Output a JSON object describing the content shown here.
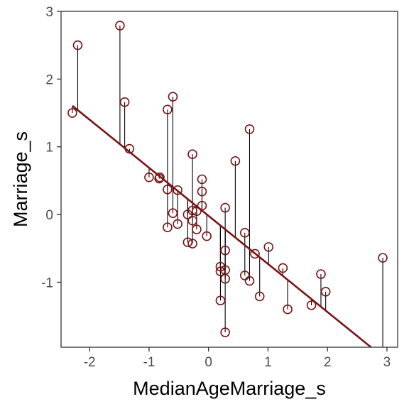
{
  "chart_data": {
    "type": "scatter",
    "xlabel": "MedianAgeMarriage_s",
    "ylabel": "Marriage_s",
    "xlim": [
      -2.48,
      3.18
    ],
    "ylim": [
      -1.96,
      3.0
    ],
    "xticks": [
      -2,
      -1,
      0,
      1,
      2,
      3
    ],
    "yticks": [
      -1,
      0,
      1,
      2,
      3
    ],
    "xtick_labels": [
      "-2",
      "-1",
      "0",
      "1",
      "2",
      "3"
    ],
    "ytick_labels": [
      "-1",
      "0",
      "1",
      "2",
      "3"
    ],
    "grid": false,
    "regression_line": {
      "intercept": -0.02,
      "slope": -0.71
    },
    "residual_segments": true,
    "point_color": "#7a1416",
    "line_color": "#7a1416",
    "points": [
      {
        "x": -2.29,
        "y": 1.5
      },
      {
        "x": -2.2,
        "y": 2.5
      },
      {
        "x": -1.49,
        "y": 2.79
      },
      {
        "x": -1.41,
        "y": 1.66
      },
      {
        "x": -1.33,
        "y": 0.97
      },
      {
        "x": -1.0,
        "y": 0.55
      },
      {
        "x": -0.83,
        "y": 0.53
      },
      {
        "x": -0.82,
        "y": 0.55
      },
      {
        "x": -0.69,
        "y": 1.55
      },
      {
        "x": -0.69,
        "y": 0.37
      },
      {
        "x": -0.69,
        "y": -0.19
      },
      {
        "x": -0.6,
        "y": 1.74
      },
      {
        "x": -0.6,
        "y": 0.02
      },
      {
        "x": -0.52,
        "y": 0.36
      },
      {
        "x": -0.52,
        "y": -0.14
      },
      {
        "x": -0.35,
        "y": -0.41
      },
      {
        "x": -0.35,
        "y": 0.0
      },
      {
        "x": -0.27,
        "y": 0.89
      },
      {
        "x": -0.27,
        "y": 0.06
      },
      {
        "x": -0.27,
        "y": -0.43
      },
      {
        "x": -0.27,
        "y": -0.09
      },
      {
        "x": -0.2,
        "y": 0.05
      },
      {
        "x": -0.2,
        "y": -0.22
      },
      {
        "x": -0.11,
        "y": 0.52
      },
      {
        "x": -0.11,
        "y": 0.34
      },
      {
        "x": -0.11,
        "y": 0.13
      },
      {
        "x": -0.03,
        "y": -0.32
      },
      {
        "x": 0.2,
        "y": -0.77
      },
      {
        "x": 0.2,
        "y": -0.84
      },
      {
        "x": 0.2,
        "y": -1.27
      },
      {
        "x": 0.28,
        "y": 0.1
      },
      {
        "x": 0.28,
        "y": -0.53
      },
      {
        "x": 0.28,
        "y": -0.82
      },
      {
        "x": 0.28,
        "y": -0.95
      },
      {
        "x": 0.28,
        "y": -1.74
      },
      {
        "x": 0.45,
        "y": 0.79
      },
      {
        "x": 0.61,
        "y": -0.27
      },
      {
        "x": 0.61,
        "y": -0.9
      },
      {
        "x": 0.69,
        "y": 1.26
      },
      {
        "x": 0.69,
        "y": -0.98
      },
      {
        "x": 0.78,
        "y": -0.58
      },
      {
        "x": 0.86,
        "y": -1.21
      },
      {
        "x": 1.01,
        "y": -0.48
      },
      {
        "x": 1.25,
        "y": -0.79
      },
      {
        "x": 1.33,
        "y": -1.4
      },
      {
        "x": 1.73,
        "y": -1.34
      },
      {
        "x": 1.89,
        "y": -0.88
      },
      {
        "x": 1.97,
        "y": -1.14
      },
      {
        "x": 2.93,
        "y": -0.64
      }
    ]
  }
}
